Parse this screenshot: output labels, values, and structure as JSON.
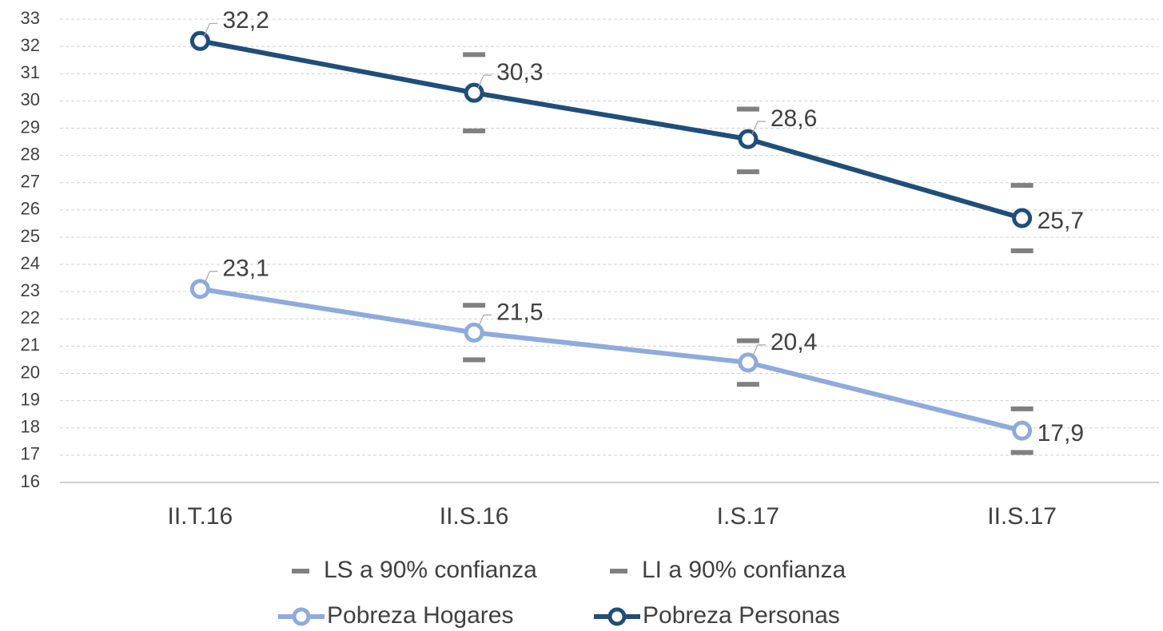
{
  "chart_data": {
    "type": "line",
    "categories": [
      "II.T.16",
      "II.S.16",
      "I.S.17",
      "II.S.17"
    ],
    "ylim": [
      16,
      33
    ],
    "yticks": [
      16,
      17,
      18,
      19,
      20,
      21,
      22,
      23,
      24,
      25,
      26,
      27,
      28,
      29,
      30,
      31,
      32,
      33
    ],
    "grid": true,
    "series": [
      {
        "name": "LS a 90% confianza",
        "marker": "dash",
        "color": "#808080",
        "values": [
          [
            null,
            null
          ],
          [
            31.7,
            22.5
          ],
          [
            29.7,
            21.2
          ],
          [
            26.9,
            18.7
          ]
        ]
      },
      {
        "name": "LI a 90% confianza",
        "marker": "dash",
        "color": "#808080",
        "values": [
          [
            null,
            null
          ],
          [
            28.9,
            20.5
          ],
          [
            27.4,
            19.6
          ],
          [
            24.5,
            17.1
          ]
        ]
      },
      {
        "name": "Pobreza Hogares",
        "marker": "circle",
        "color": "#8faadc",
        "values": [
          23.1,
          21.5,
          20.4,
          17.9
        ],
        "value_labels": [
          "23,1",
          "21,5",
          "20,4",
          "17,9"
        ]
      },
      {
        "name": "Pobreza Personas",
        "marker": "circle",
        "color": "#1f4e79",
        "values": [
          32.2,
          30.3,
          28.6,
          25.7
        ],
        "value_labels": [
          "32,2",
          "30,3",
          "28,6",
          "25,7"
        ]
      }
    ]
  }
}
